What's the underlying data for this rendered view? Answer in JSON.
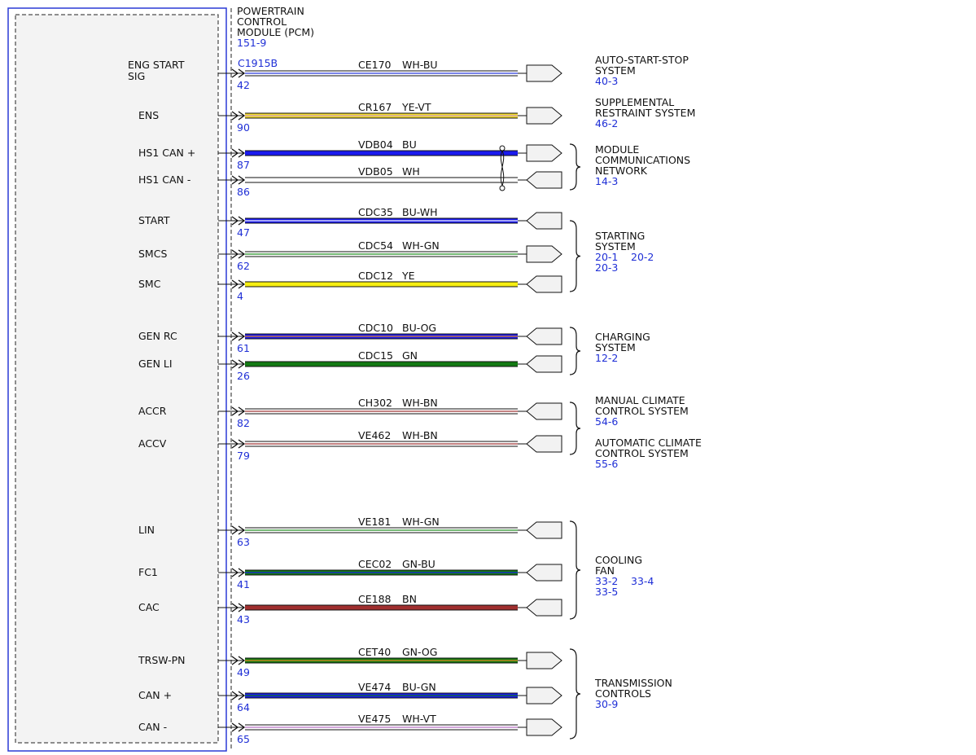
{
  "module": {
    "title_lines": [
      "POWERTRAIN",
      "CONTROL",
      "MODULE (PCM)"
    ],
    "ref": "151-9",
    "connector": "C1915B"
  },
  "circuits": [
    {
      "pin_label": [
        "ENG START",
        "SIG"
      ],
      "pin": "42",
      "circuit": "CE170",
      "color_code": "WH-BU",
      "wire": "#ffffff",
      "stripe": "#2233dd",
      "conn": "right"
    },
    {
      "pin_label": [
        "ENS"
      ],
      "pin": "90",
      "circuit": "CR167",
      "color_code": "YE-VT",
      "wire": "#f2dc2a",
      "stripe": "#cc9acd",
      "conn": "right"
    },
    {
      "pin_label": [
        "HS1 CAN +"
      ],
      "pin": "87",
      "circuit": "VDB04",
      "color_code": "BU",
      "wire": "#1a1aee",
      "stripe": null,
      "conn": "right"
    },
    {
      "pin_label": [
        "HS1 CAN -"
      ],
      "pin": "86",
      "circuit": "VDB05",
      "color_code": "WH",
      "wire": "#ffffff",
      "stripe": null,
      "conn": "left"
    },
    {
      "pin_label": [
        "START"
      ],
      "pin": "47",
      "circuit": "CDC35",
      "color_code": "BU-WH",
      "wire": "#1a1aee",
      "stripe": "#ffffff",
      "conn": "left"
    },
    {
      "pin_label": [
        "SMCS"
      ],
      "pin": "62",
      "circuit": "CDC54",
      "color_code": "WH-GN",
      "wire": "#ffffff",
      "stripe": "#1a8a1a",
      "conn": "right"
    },
    {
      "pin_label": [
        "SMC"
      ],
      "pin": "4",
      "circuit": "CDC12",
      "color_code": "YE",
      "wire": "#f6ee12",
      "stripe": null,
      "conn": "left"
    },
    {
      "pin_label": [
        "GEN RC"
      ],
      "pin": "61",
      "circuit": "CDC10",
      "color_code": "BU-OG",
      "wire": "#1a1aee",
      "stripe": "#e88a20",
      "conn": "left"
    },
    {
      "pin_label": [
        "GEN LI"
      ],
      "pin": "26",
      "circuit": "CDC15",
      "color_code": "GN",
      "wire": "#137a13",
      "stripe": null,
      "conn": "left"
    },
    {
      "pin_label": [
        "ACCR"
      ],
      "pin": "82",
      "circuit": "CH302",
      "color_code": "WH-BN",
      "wire": "#ffffff",
      "stripe": "#9b3030",
      "conn": "left"
    },
    {
      "pin_label": [
        "ACCV"
      ],
      "pin": "79",
      "circuit": "VE462",
      "color_code": "WH-BN",
      "wire": "#ffffff",
      "stripe": "#9b3030",
      "conn": "left"
    },
    {
      "pin_label": [
        "LIN"
      ],
      "pin": "63",
      "circuit": "VE181",
      "color_code": "WH-GN",
      "wire": "#ffffff",
      "stripe": "#1a8a1a",
      "conn": "left"
    },
    {
      "pin_label": [
        "FC1"
      ],
      "pin": "41",
      "circuit": "CEC02",
      "color_code": "GN-BU",
      "wire": "#137a13",
      "stripe": "#1a1aee",
      "conn": "left"
    },
    {
      "pin_label": [
        "CAC"
      ],
      "pin": "43",
      "circuit": "CE188",
      "color_code": "BN",
      "wire": "#a02f2f",
      "stripe": null,
      "conn": "left"
    },
    {
      "pin_label": [
        "TRSW-PN"
      ],
      "pin": "49",
      "circuit": "CET40",
      "color_code": "GN-OG",
      "wire": "#137a13",
      "stripe": "#e88a20",
      "conn": "right"
    },
    {
      "pin_label": [
        "CAN +"
      ],
      "pin": "64",
      "circuit": "VE474",
      "color_code": "BU-GN",
      "wire": "#1a1aee",
      "stripe": "#137a13",
      "conn": "right"
    },
    {
      "pin_label": [
        "CAN -"
      ],
      "pin": "65",
      "circuit": "VE475",
      "color_code": "WH-VT",
      "wire": "#ffffff",
      "stripe": "#b36bc2",
      "conn": "right"
    }
  ],
  "systems": [
    {
      "id": "auto-start-stop",
      "lines": [
        "AUTO-START-STOP",
        "SYSTEM"
      ],
      "refs": [
        "40-3"
      ]
    },
    {
      "id": "supplemental-restraint",
      "lines": [
        "SUPPLEMENTAL",
        "RESTRAINT SYSTEM"
      ],
      "refs": [
        "46-2"
      ]
    },
    {
      "id": "module-communications",
      "lines": [
        "MODULE",
        "COMMUNICATIONS",
        "NETWORK"
      ],
      "refs": [
        "14-3"
      ]
    },
    {
      "id": "starting",
      "lines": [
        "STARTING",
        "SYSTEM"
      ],
      "refs": [
        "20-1",
        "20-2",
        "20-3"
      ]
    },
    {
      "id": "charging",
      "lines": [
        "CHARGING",
        "SYSTEM"
      ],
      "refs": [
        "12-2"
      ]
    },
    {
      "id": "manual-climate",
      "lines": [
        "MANUAL CLIMATE",
        "CONTROL SYSTEM"
      ],
      "refs": [
        "54-6"
      ]
    },
    {
      "id": "automatic-climate",
      "lines": [
        "AUTOMATIC CLIMATE",
        "CONTROL SYSTEM"
      ],
      "refs": [
        "55-6"
      ]
    },
    {
      "id": "cooling-fan",
      "lines": [
        "COOLING",
        "FAN"
      ],
      "refs": [
        "33-2",
        "33-4",
        "33-5"
      ]
    },
    {
      "id": "transmission-controls",
      "lines": [
        "TRANSMISSION",
        "CONTROLS"
      ],
      "refs": [
        "30-9"
      ]
    }
  ],
  "colors": {
    "module_border": "#2a3ad6",
    "module_fill": "#f3f3f3",
    "ref_text": "#1f2fd6",
    "connector_fill": "#f2f2f2"
  }
}
